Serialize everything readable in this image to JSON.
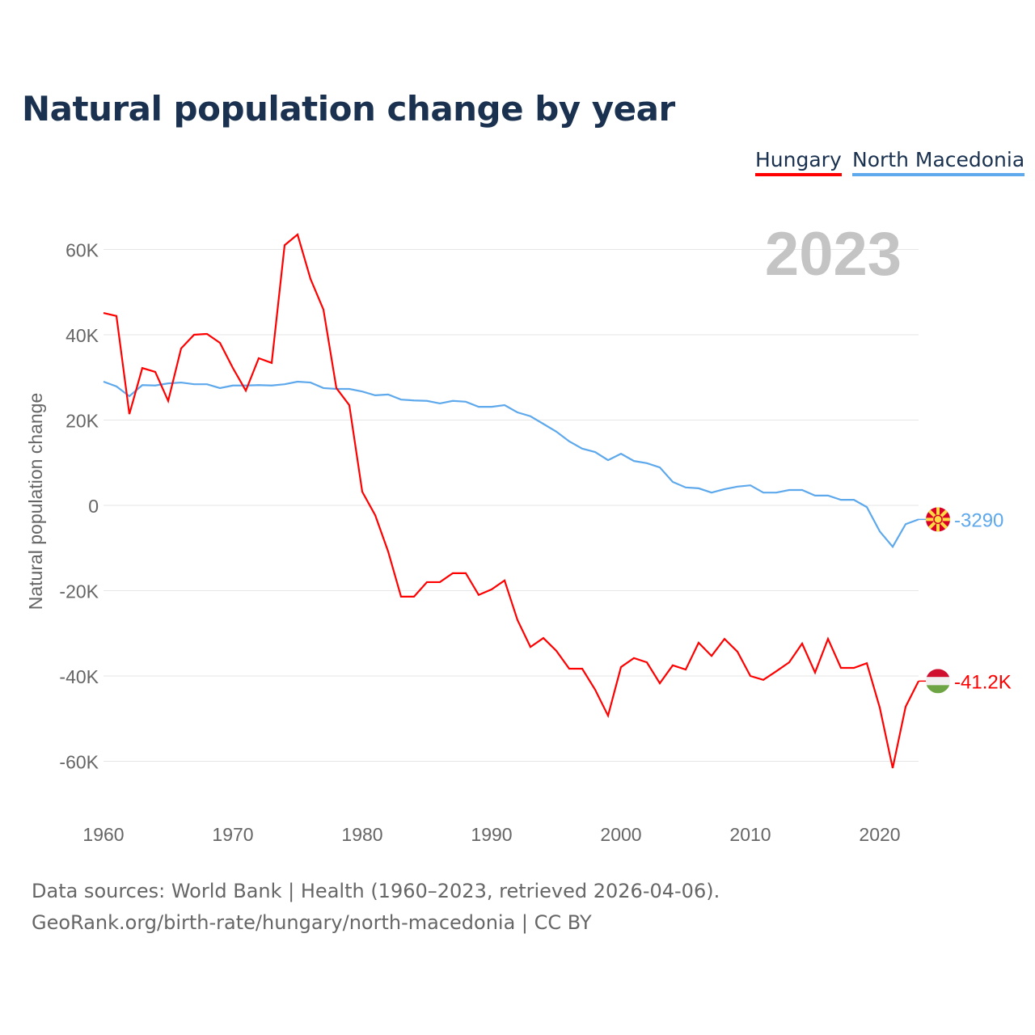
{
  "title": "Natural population change by year",
  "year_label": "2023",
  "sources": {
    "line1": "Data sources: World Bank | Health (1960–2023, retrieved 2026-04-06).",
    "line2": "GeoRank.org/birth-rate/hungary/north-macedonia | CC BY"
  },
  "chart_data": {
    "type": "line",
    "title": "Natural population change by year",
    "xlabel": "",
    "ylabel": "Natural population change",
    "xlim": [
      1960,
      2023
    ],
    "ylim": [
      -70000,
      70000
    ],
    "x_ticks": [
      {
        "v": 1960,
        "label": "1960"
      },
      {
        "v": 1970,
        "label": "1970"
      },
      {
        "v": 1980,
        "label": "1980"
      },
      {
        "v": 1990,
        "label": "1990"
      },
      {
        "v": 2000,
        "label": "2000"
      },
      {
        "v": 2010,
        "label": "2010"
      },
      {
        "v": 2020,
        "label": "2020"
      }
    ],
    "y_ticks": [
      {
        "v": 60000,
        "label": "60K"
      },
      {
        "v": 40000,
        "label": "40K"
      },
      {
        "v": 20000,
        "label": "20K"
      },
      {
        "v": 0,
        "label": "0"
      },
      {
        "v": -20000,
        "label": "-20K"
      },
      {
        "v": -40000,
        "label": "-40K"
      },
      {
        "v": -60000,
        "label": "-60K"
      }
    ],
    "grid": true,
    "legend_position": "top-right",
    "x_start": 1960,
    "series": [
      {
        "name": "Hungary",
        "color": "#ff0000",
        "end_label": "-41.2K",
        "flag": "hungary",
        "values": [
          45.1,
          44.4,
          21.4,
          32.2,
          31.3,
          24.5,
          36.8,
          40.0,
          40.2,
          38.1,
          32.2,
          26.9,
          34.5,
          33.4,
          61.0,
          63.5,
          53.1,
          45.9,
          27.5,
          23.5,
          3.2,
          -2.3,
          -10.8,
          -21.4,
          -21.4,
          -18.0,
          -18.0,
          -15.9,
          -15.9,
          -21.0,
          -19.7,
          -17.6,
          -26.9,
          -33.2,
          -31.1,
          -34.1,
          -38.3,
          -38.3,
          -43.2,
          -49.3,
          -37.9,
          -35.8,
          -36.8,
          -41.7,
          -37.5,
          -38.5,
          -32.2,
          -35.3,
          -31.3,
          -34.3,
          -40.0,
          -40.9,
          -38.9,
          -36.8,
          -32.4,
          -39.2,
          -31.3,
          -38.1,
          -38.1,
          -37.0,
          -47.4,
          -61.6,
          -47.2,
          -41.2
        ]
      },
      {
        "name": "North Macedonia",
        "color": "#5ea8ec",
        "end_label": "-3290",
        "flag": "north-macedonia",
        "values": [
          29.0,
          27.9,
          25.6,
          28.2,
          28.1,
          28.6,
          28.8,
          28.4,
          28.4,
          27.5,
          28.1,
          28.1,
          28.2,
          28.1,
          28.4,
          29.0,
          28.8,
          27.5,
          27.3,
          27.3,
          26.7,
          25.8,
          26.0,
          24.8,
          24.6,
          24.5,
          23.9,
          24.5,
          24.3,
          23.1,
          23.1,
          23.5,
          21.8,
          20.9,
          19.1,
          17.3,
          15.0,
          13.3,
          12.5,
          10.6,
          12.1,
          10.4,
          9.9,
          8.9,
          5.5,
          4.2,
          4.0,
          3.0,
          3.8,
          4.4,
          4.7,
          3.0,
          3.0,
          3.6,
          3.6,
          2.3,
          2.3,
          1.3,
          1.3,
          -0.4,
          -6.1,
          -9.7,
          -4.4,
          -3.29
        ]
      }
    ],
    "value_unit": "thousands"
  }
}
